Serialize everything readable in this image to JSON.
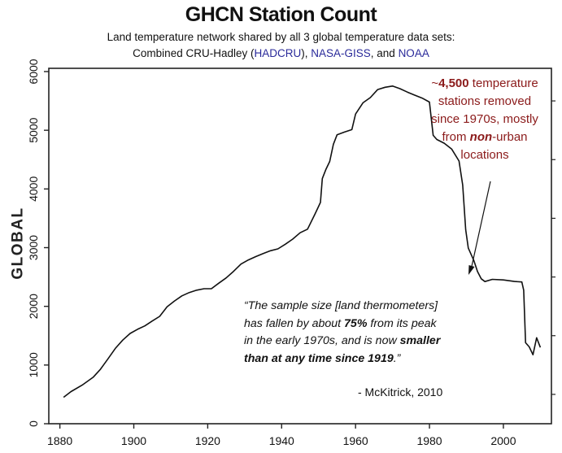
{
  "chart_data": {
    "type": "line",
    "title": "GHCN Station Count",
    "subtitle_line1": "Land temperature network shared by all 3 global temperature data sets:",
    "subtitle_line2": {
      "prefix": "Combined CRU-Hadley (",
      "hadcru": "HADCRU",
      "mid1": "), ",
      "nasa": "NASA-GISS",
      "mid2": ", and ",
      "noaa": "NOAA"
    },
    "ylabel": "GLOBAL",
    "xlabel": "",
    "xlim": [
      1877,
      2013
    ],
    "ylim": [
      0,
      6000
    ],
    "x_ticks": [
      1880,
      1900,
      1920,
      1940,
      1960,
      1980,
      2000
    ],
    "y_ticks": [
      0,
      1000,
      2000,
      3000,
      4000,
      5000,
      6000
    ],
    "grid": false,
    "series": [
      {
        "points": [
          [
            1881,
            450
          ],
          [
            1883,
            560
          ],
          [
            1886,
            680
          ],
          [
            1889,
            820
          ],
          [
            1891,
            960
          ],
          [
            1893,
            1130
          ],
          [
            1895,
            1300
          ],
          [
            1897,
            1430
          ],
          [
            1899,
            1530
          ],
          [
            1901,
            1590
          ],
          [
            1903,
            1640
          ],
          [
            1905,
            1720
          ],
          [
            1907,
            1800
          ],
          [
            1909,
            1970
          ],
          [
            1911,
            2080
          ],
          [
            1913,
            2180
          ],
          [
            1915,
            2250
          ],
          [
            1917,
            2300
          ],
          [
            1919,
            2330
          ],
          [
            1921,
            2330
          ],
          [
            1923,
            2420
          ],
          [
            1925,
            2500
          ],
          [
            1927,
            2600
          ],
          [
            1929,
            2710
          ],
          [
            1931,
            2770
          ],
          [
            1933,
            2820
          ],
          [
            1935,
            2870
          ],
          [
            1937,
            2920
          ],
          [
            1939,
            2960
          ],
          [
            1941,
            3050
          ],
          [
            1943,
            3150
          ],
          [
            1945,
            3270
          ],
          [
            1947,
            3340
          ],
          [
            1949,
            3600
          ],
          [
            1950.5,
            3800
          ],
          [
            1951,
            4200
          ],
          [
            1952,
            4350
          ],
          [
            1953,
            4470
          ],
          [
            1954,
            4750
          ],
          [
            1955,
            4900
          ],
          [
            1957,
            4940
          ],
          [
            1959,
            4980
          ],
          [
            1960,
            5250
          ],
          [
            1962,
            5450
          ],
          [
            1964,
            5550
          ],
          [
            1966,
            5700
          ],
          [
            1968,
            5750
          ],
          [
            1970,
            5780
          ],
          [
            1972,
            5740
          ],
          [
            1974,
            5680
          ],
          [
            1976,
            5620
          ],
          [
            1978,
            5560
          ],
          [
            1980,
            5480
          ],
          [
            1981,
            4900
          ],
          [
            1982,
            4820
          ],
          [
            1984,
            4750
          ],
          [
            1986,
            4650
          ],
          [
            1988,
            4450
          ],
          [
            1989,
            4050
          ],
          [
            1989.8,
            3300
          ],
          [
            1990.5,
            3000
          ],
          [
            1992,
            2800
          ],
          [
            1993,
            2620
          ],
          [
            1994,
            2500
          ],
          [
            1995,
            2450
          ],
          [
            1997,
            2480
          ],
          [
            2000,
            2460
          ],
          [
            2003,
            2420
          ],
          [
            2005,
            2400
          ],
          [
            2005.5,
            2250
          ],
          [
            2006,
            1350
          ],
          [
            2007,
            1280
          ],
          [
            2008,
            1150
          ],
          [
            2009,
            1450
          ],
          [
            2010,
            1300
          ]
        ]
      }
    ],
    "annotation_red": {
      "l1a": "~",
      "l1b": "4,500",
      "l1c": " temperature",
      "l2": "stations removed",
      "l3": "since 1970s, mostly",
      "l4a": "from ",
      "l4b": "non",
      "l4c": "-urban",
      "l5": "locations",
      "color": "#8b1a1a"
    },
    "quote": {
      "l1": "“The sample size [land thermometers]",
      "l2a": "has fallen by about ",
      "l2b": "75%",
      "l2c": " from its peak",
      "l3": "in the early 1970s, and is now ",
      "l3b": "smaller",
      "l4a": "than at any time since 1919",
      "l4b": ".”",
      "cite": "- McKitrick, 2010"
    }
  }
}
